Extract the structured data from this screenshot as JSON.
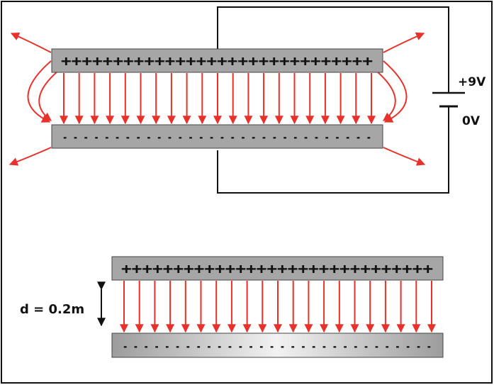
{
  "battery": {
    "positive_label": "+9V",
    "negative_label": "0V"
  },
  "upper_capacitor": {
    "top_plate_charges": "++++++++++++++++++++++++++++++",
    "bottom_plate_charges": "- - - - - - - - - - - - - - - - - - - - - - - - - - - - - -",
    "field_arrow_count": 21,
    "fringe_field": true
  },
  "lower_capacitor": {
    "top_plate_charges": "++++++++++++++++++++++++++++++",
    "bottom_plate_charges": "- - - - - - - - - - - - - - - - - - - - - - - - - - - - - -",
    "field_arrow_count": 21,
    "separation_label": "d = 0.2m"
  },
  "colors": {
    "field_arrow": "#e8312b",
    "plate_fill": "#a6a6a6",
    "plate_gradient_light": "#f2f2f2",
    "wire": "#111111",
    "border": "#111111"
  }
}
